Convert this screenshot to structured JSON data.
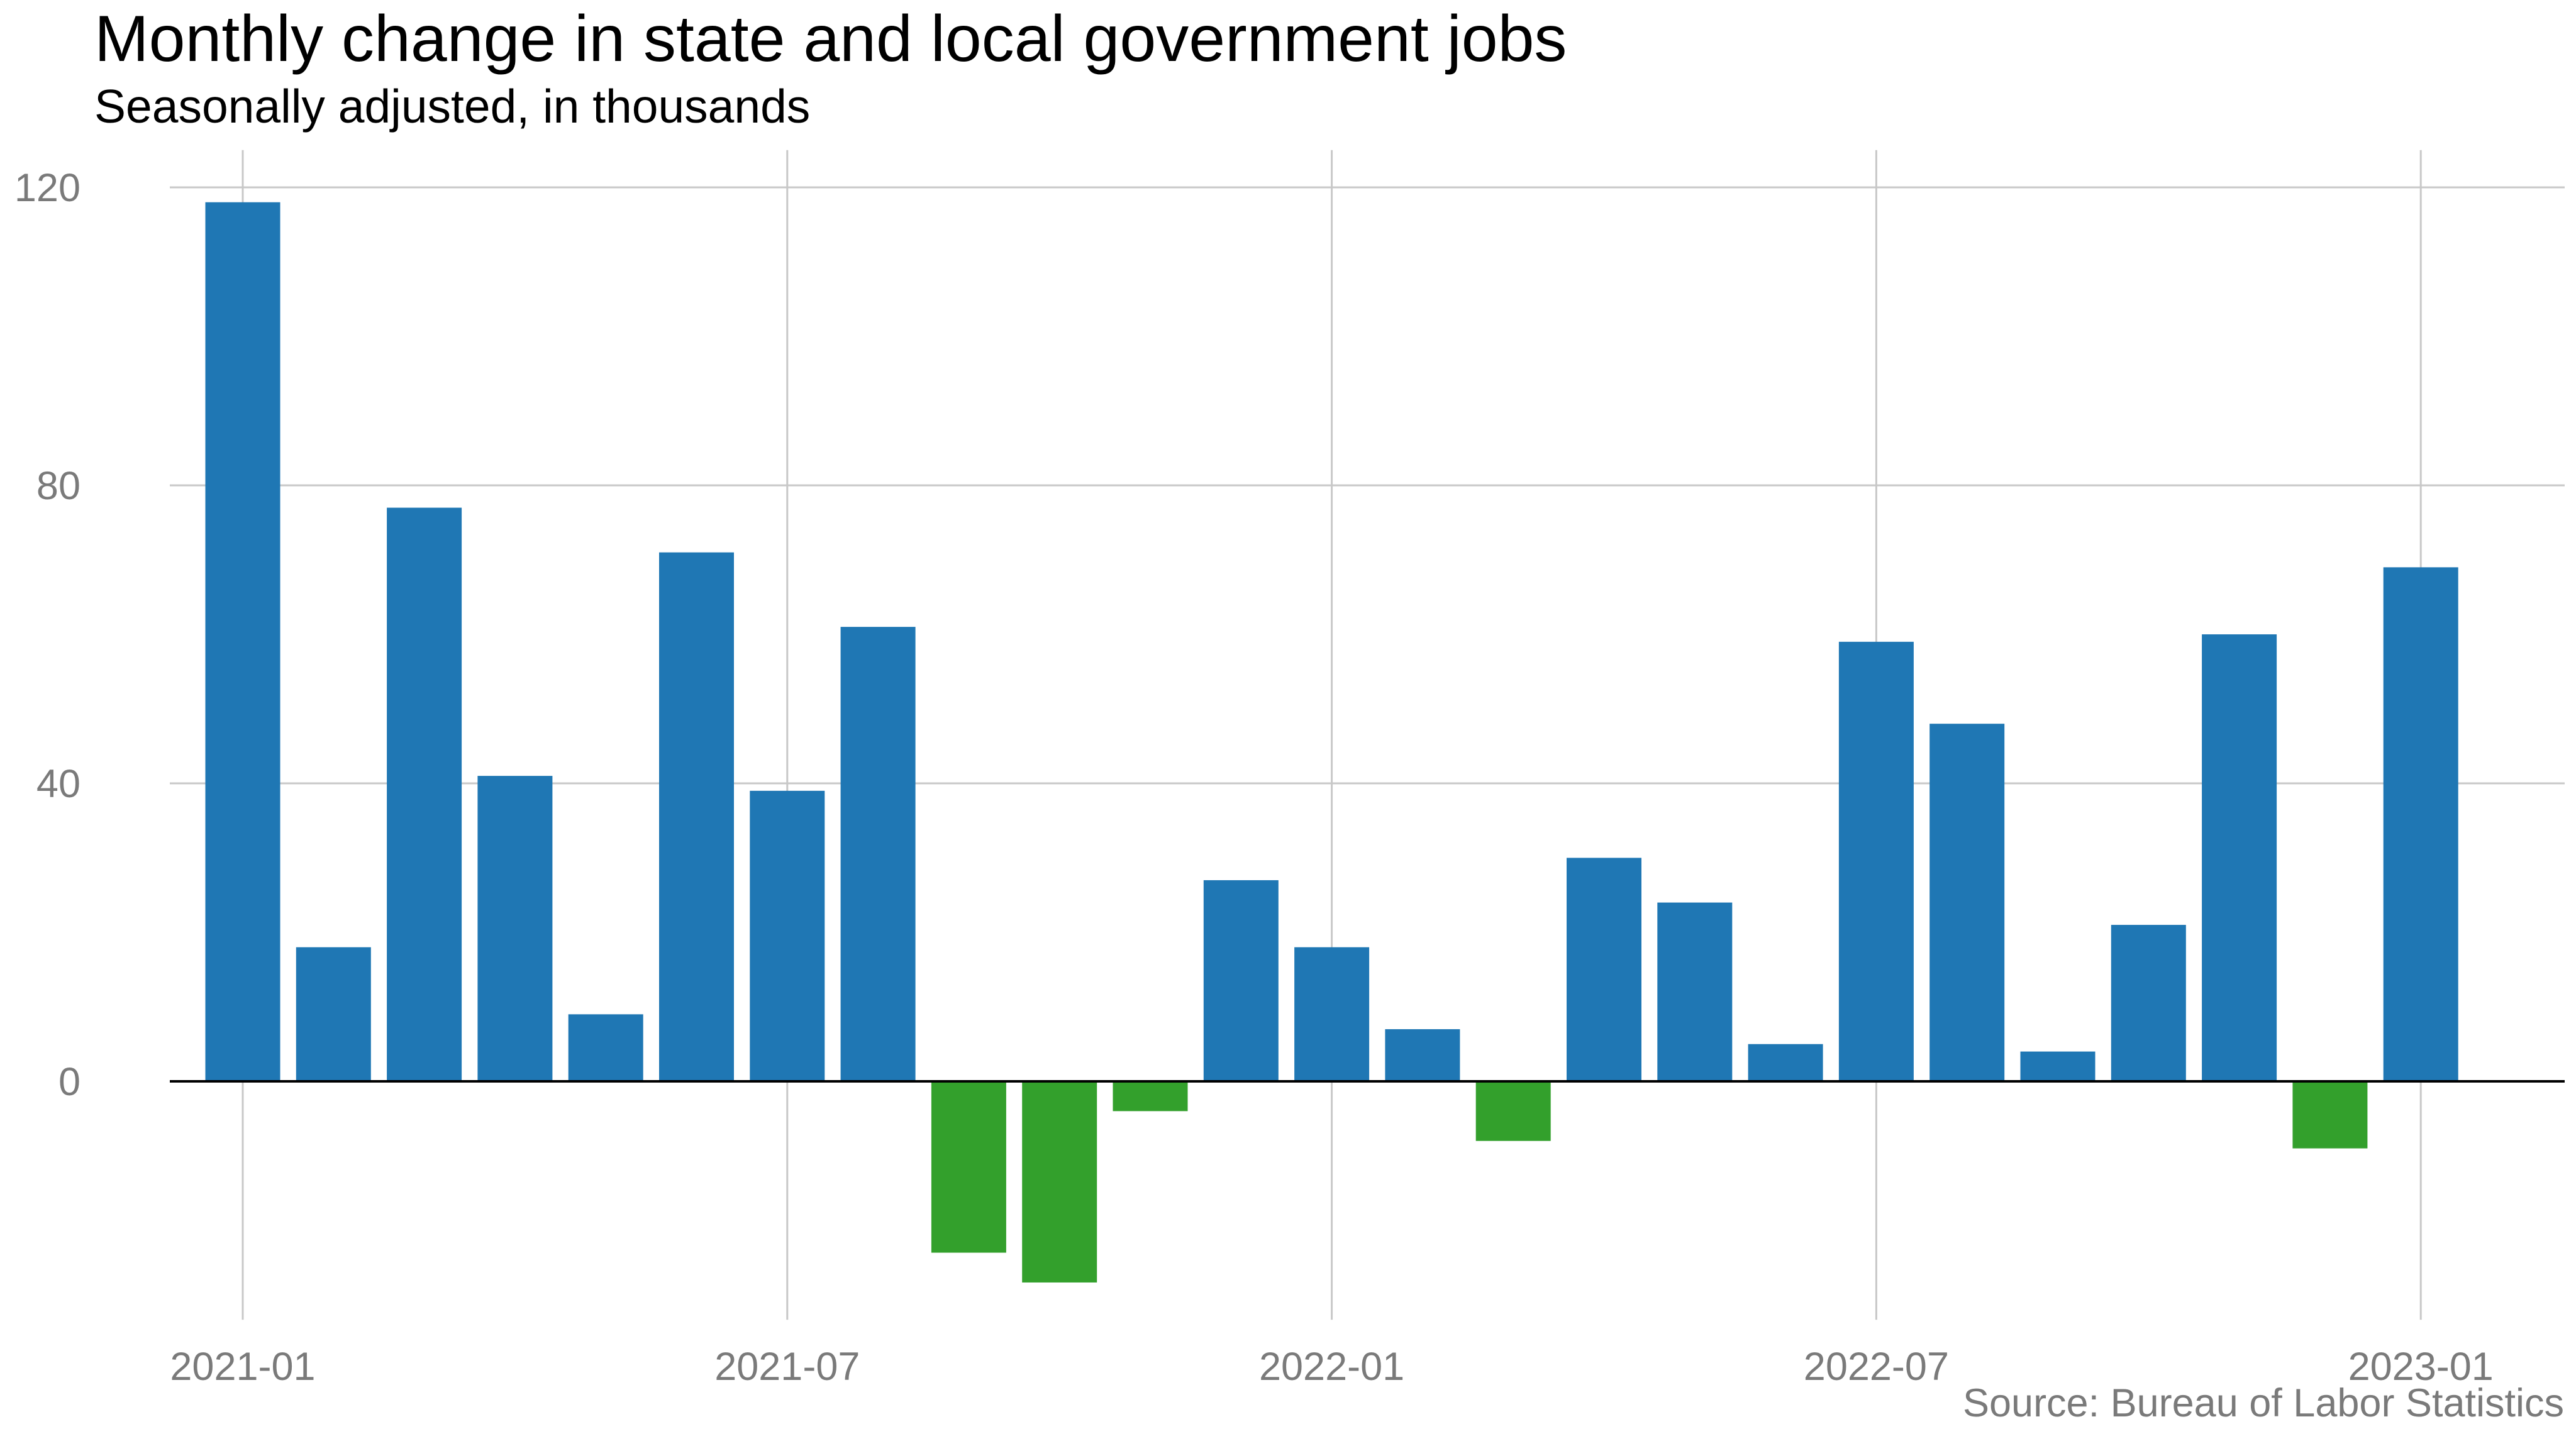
{
  "chart_data": {
    "type": "bar",
    "title": "Monthly change in state and local government jobs",
    "subtitle": "Seasonally adjusted, in thousands",
    "caption": "Source: Bureau of Labor Statistics",
    "xlabel": "",
    "ylabel": "",
    "categories": [
      "2021-01",
      "2021-02",
      "2021-03",
      "2021-04",
      "2021-05",
      "2021-06",
      "2021-07",
      "2021-08",
      "2021-09",
      "2021-10",
      "2021-11",
      "2021-12",
      "2022-01",
      "2022-02",
      "2022-03",
      "2022-04",
      "2022-05",
      "2022-06",
      "2022-07",
      "2022-08",
      "2022-09",
      "2022-10",
      "2022-11",
      "2022-12",
      "2023-01"
    ],
    "values": [
      118,
      18,
      77,
      41,
      9,
      71,
      39,
      61,
      -23,
      -27,
      -4,
      27,
      18,
      7,
      -8,
      30,
      24,
      5,
      59,
      48,
      4,
      21,
      60,
      -9,
      69
    ],
    "x_ticks": [
      "2021-01",
      "2021-07",
      "2022-01",
      "2022-07",
      "2023-01"
    ],
    "y_ticks": [
      0,
      40,
      80,
      120
    ],
    "ylim": [
      -32,
      125
    ],
    "grid": true,
    "legend": "none",
    "colors": {
      "positive": "#1f77b4",
      "negative": "#33a02c",
      "grid": "#c8c8c8",
      "zero_line": "#000000",
      "tick_text": "#7a7a7a"
    }
  }
}
